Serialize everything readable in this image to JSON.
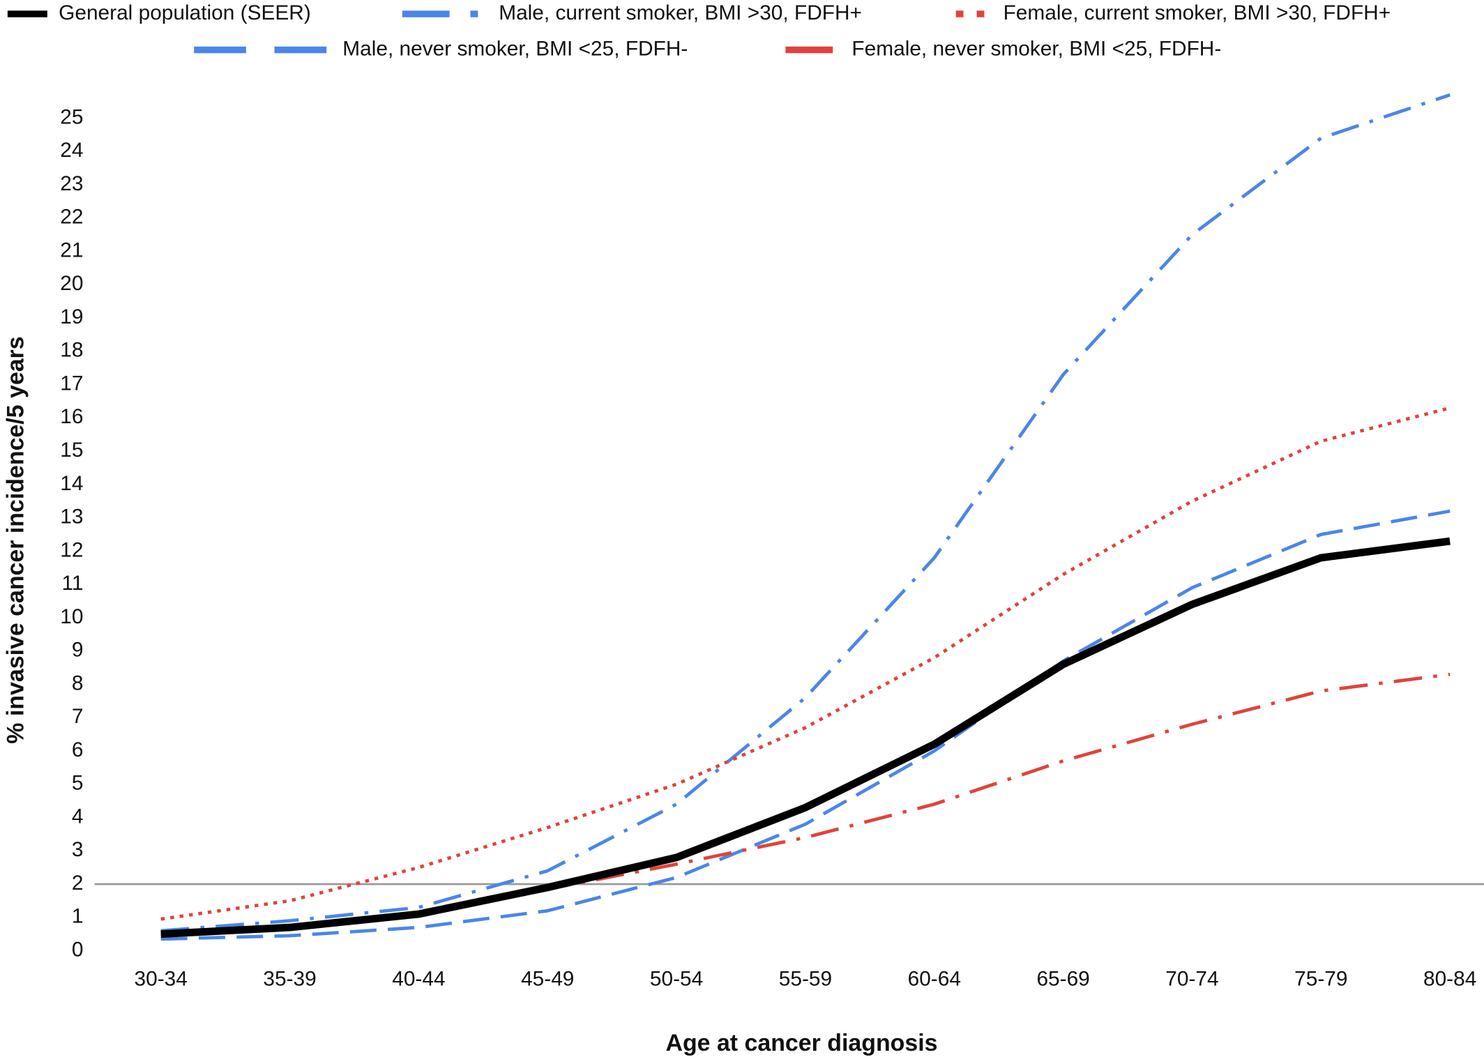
{
  "chart_data": {
    "type": "line",
    "x_label": "Age at cancer diagnosis",
    "y_label": "% invasive cancer incidence/5 years",
    "categories": [
      "30-34",
      "35-39",
      "40-44",
      "45-49",
      "50-54",
      "55-59",
      "60-64",
      "65-69",
      "70-74",
      "75-79",
      "80-84"
    ],
    "ylim": [
      0,
      26
    ],
    "yticks": [
      0,
      1,
      2,
      3,
      4,
      5,
      6,
      7,
      8,
      9,
      10,
      11,
      12,
      13,
      14,
      15,
      16,
      17,
      18,
      19,
      20,
      21,
      22,
      23,
      24,
      25
    ],
    "reference_line": 2,
    "series": [
      {
        "name": "General population (SEER)",
        "color": "#000000",
        "style": "solid",
        "values": [
          0.5,
          0.7,
          1.1,
          1.9,
          2.8,
          4.3,
          6.2,
          8.6,
          10.4,
          11.8,
          12.3
        ]
      },
      {
        "name": "Male, current smoker, BMI >30, FDFH+",
        "color": "#4a86e8",
        "style": "dashdot",
        "values": [
          0.6,
          0.9,
          1.3,
          2.4,
          4.4,
          7.6,
          11.8,
          17.3,
          21.5,
          24.4,
          25.7
        ]
      },
      {
        "name": "Female, current smoker, BMI >30, FDFH+",
        "color": "#e0433a",
        "style": "dotted",
        "values": [
          0.95,
          1.5,
          2.5,
          3.7,
          5.0,
          6.7,
          8.8,
          11.3,
          13.5,
          15.3,
          16.3
        ]
      },
      {
        "name": "Male, never smoker, BMI <25, FDFH-",
        "color": "#4a86e8",
        "style": "dashed",
        "values": [
          0.35,
          0.45,
          0.7,
          1.2,
          2.2,
          3.8,
          6.0,
          8.7,
          10.9,
          12.5,
          13.2
        ]
      },
      {
        "name": "Female, never smoker, BMI <25, FDFH-",
        "color": "#e0433a",
        "style": "dashdot",
        "values": [
          0.45,
          0.75,
          1.15,
          1.85,
          2.6,
          3.4,
          4.4,
          5.7,
          6.8,
          7.8,
          8.3
        ]
      }
    ]
  }
}
